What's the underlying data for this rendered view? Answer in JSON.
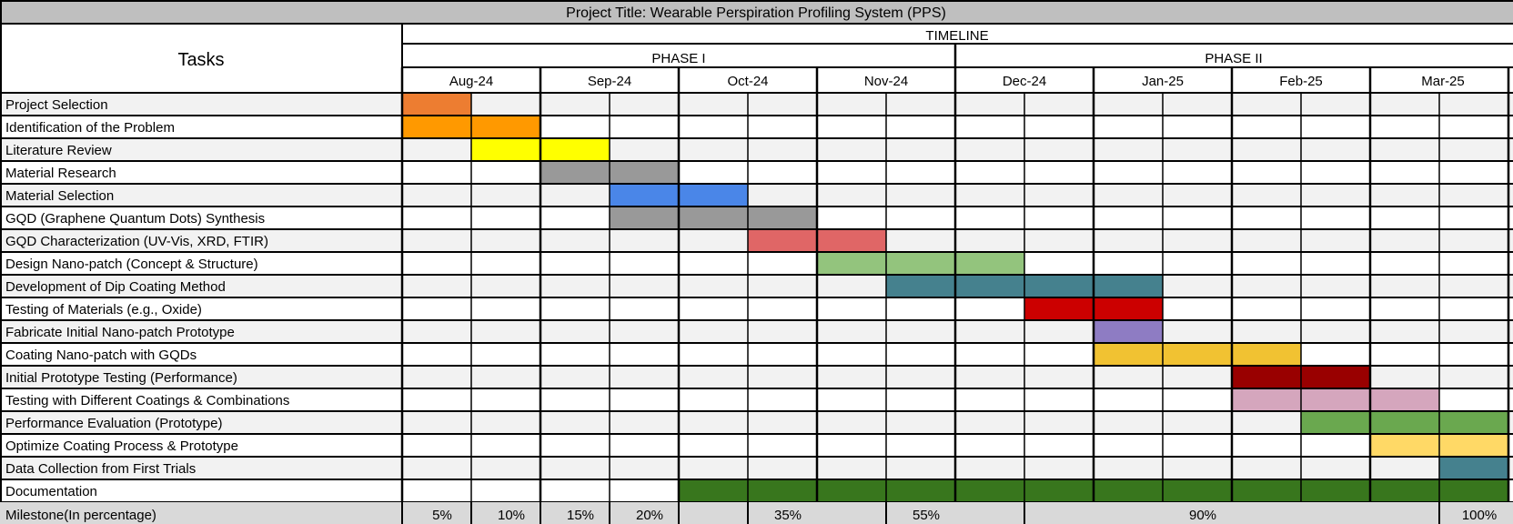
{
  "title": "Project Title: Wearable Perspiration Profiling System (PPS)",
  "tasks_header": "Tasks",
  "timeline_label": "TIMELINE",
  "phases": [
    {
      "label": "PHASE I",
      "start_half": 0,
      "end_half": 8
    },
    {
      "label": "PHASE II",
      "start_half": 8,
      "end_half": 16
    }
  ],
  "months": [
    "Aug-24",
    "Sep-24",
    "Oct-24",
    "Nov-24",
    "Dec-24",
    "Jan-25",
    "Feb-25",
    "Mar-25"
  ],
  "chart_data": {
    "type": "gantt",
    "time_unit": "half-month",
    "tasks": [
      {
        "name": "Project Selection",
        "start_half": 0,
        "end_half": 1,
        "color": "#ED7D31"
      },
      {
        "name": "Identification of the Problem",
        "start_half": 0,
        "end_half": 2,
        "color": "#FF9900"
      },
      {
        "name": "Literature Review",
        "start_half": 1,
        "end_half": 3,
        "color": "#FFFF00"
      },
      {
        "name": " Material Research",
        "start_half": 2,
        "end_half": 4,
        "color": "#999999"
      },
      {
        "name": "Material Selection",
        "start_half": 3,
        "end_half": 5,
        "color": "#4A86E8"
      },
      {
        "name": "GQD (Graphene Quantum Dots) Synthesis",
        "start_half": 3,
        "end_half": 6,
        "color": "#999999"
      },
      {
        "name": "GQD Characterization (UV-Vis, XRD, FTIR)",
        "start_half": 5,
        "end_half": 7,
        "color": "#E06666"
      },
      {
        "name": "Design Nano-patch (Concept & Structure)",
        "start_half": 6,
        "end_half": 9,
        "color": "#93C47D"
      },
      {
        "name": "Development of Dip Coating Method",
        "start_half": 7,
        "end_half": 11,
        "color": "#45818E"
      },
      {
        "name": "Testing of Materials (e.g., Oxide)",
        "start_half": 9,
        "end_half": 11,
        "color": "#CC0000"
      },
      {
        "name": "Fabricate Initial Nano-patch Prototype",
        "start_half": 10,
        "end_half": 11,
        "color": "#8E7CC3"
      },
      {
        "name": "Coating Nano-patch with GQDs",
        "start_half": 10,
        "end_half": 13,
        "color": "#F1C232"
      },
      {
        "name": "Initial Prototype Testing (Performance)",
        "start_half": 12,
        "end_half": 14,
        "color": "#990000"
      },
      {
        "name": "Testing with Different Coatings & Combinations",
        "start_half": 12,
        "end_half": 15,
        "color": "#D5A6BD"
      },
      {
        "name": "Performance Evaluation (Prototype)",
        "start_half": 13,
        "end_half": 16,
        "color": "#6AA84F"
      },
      {
        "name": "Optimize Coating Process & Prototype",
        "start_half": 14,
        "end_half": 16,
        "color": "#FFD966"
      },
      {
        "name": "Data Collection from First Trials",
        "start_half": 15,
        "end_half": 16,
        "color": "#45818E"
      },
      {
        "name": "Documentation",
        "start_half": 4,
        "end_half": 16,
        "color": "#38761D"
      }
    ],
    "milestone_label": "Milestone(In percentage)",
    "milestones": [
      {
        "label": "5%",
        "half": 1
      },
      {
        "label": "10%",
        "half": 2
      },
      {
        "label": "15%",
        "half": 3
      },
      {
        "label": "20%",
        "half": 4
      },
      {
        "label": "35%",
        "half": 6
      },
      {
        "label": "55%",
        "half": 8
      },
      {
        "label": "90%",
        "half": 12
      },
      {
        "label": "100%",
        "half": 16
      }
    ]
  }
}
